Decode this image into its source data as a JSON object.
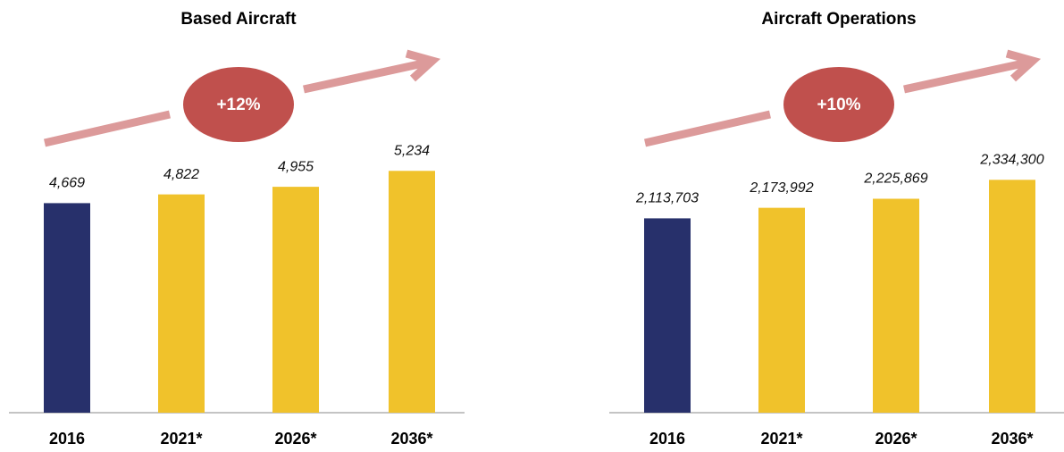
{
  "chart_data": [
    {
      "type": "bar",
      "title": "Based Aircraft",
      "annotation": "+12%",
      "categories": [
        "2016",
        "2021*",
        "2026*",
        "2036*"
      ],
      "values": [
        4669,
        4822,
        4955,
        5234
      ],
      "value_labels": [
        "4,669",
        "4,822",
        "4,955",
        "5,234"
      ],
      "colors": [
        "#27306b",
        "#f0c22b",
        "#f0c22b",
        "#f0c22b"
      ],
      "ylim": [
        1000,
        7600
      ]
    },
    {
      "type": "bar",
      "title": "Aircraft Operations",
      "annotation": "+10%",
      "categories": [
        "2016",
        "2021*",
        "2026*",
        "2036*"
      ],
      "values": [
        2113703,
        2173992,
        2225869,
        2334300
      ],
      "value_labels": [
        "2,113,703",
        "2,173,992",
        "2,225,869",
        "2,334,300"
      ],
      "colors": [
        "#27306b",
        "#f0c22b",
        "#f0c22b",
        "#f0c22b"
      ],
      "ylim": [
        1000000,
        3160000
      ]
    }
  ]
}
